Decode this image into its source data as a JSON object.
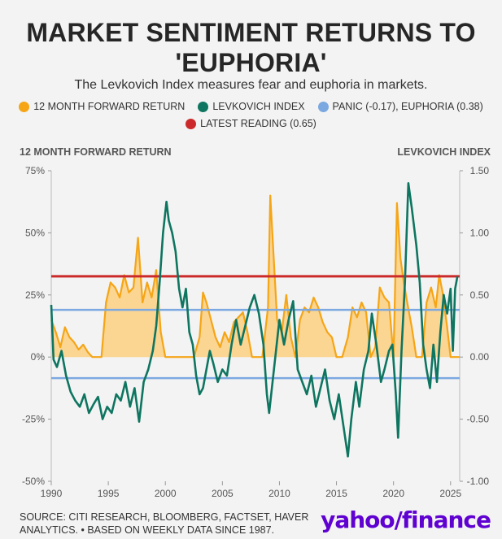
{
  "header": {
    "title_line1": "MARKET SENTIMENT RETURNS TO",
    "title_line2": "'EUPHORIA'",
    "subtitle": "The Levkovich Index measures fear and euphoria in markets."
  },
  "legend": [
    {
      "label": "12 MONTH FORWARD RETURN",
      "color": "#f5a516"
    },
    {
      "label": "LEVKOVICH INDEX",
      "color": "#0e7560"
    },
    {
      "label": "PANIC (-0.17), EUPHORIA (0.38)",
      "color": "#7ba8e0"
    },
    {
      "label": "LATEST READING (0.65)",
      "color": "#cc2a2a"
    }
  ],
  "axes": {
    "left_title": "12 MONTH FORWARD RETURN",
    "right_title": "LEVKOVICH INDEX"
  },
  "footer": {
    "source_line1": "SOURCE: CITI RESEARCH, BLOOMBERG, FACTSET, HAVER",
    "source_line2": "ANALYTICS. • BASED ON WEEKLY DATA SINCE 1987.",
    "logo_text": "yahoo/finance"
  },
  "chart_data": {
    "type": "line",
    "x_axis": {
      "ticks": [
        1990,
        1995,
        2000,
        2005,
        2010,
        2015,
        2020,
        2025
      ],
      "range": [
        1990,
        2025.8
      ]
    },
    "y_left": {
      "label": "12 MONTH FORWARD RETURN",
      "range": [
        -50,
        75
      ],
      "ticks": [
        75,
        50,
        25,
        0,
        -25,
        -50
      ],
      "tick_labels": [
        "75%",
        "50%",
        "25%",
        "0%",
        "-25%",
        "-50%"
      ]
    },
    "y_right": {
      "label": "LEVKOVICH INDEX",
      "range": [
        -1.0,
        1.5
      ],
      "ticks": [
        1.5,
        1.0,
        0.5,
        0.0,
        -0.5,
        -1.0
      ],
      "tick_labels": [
        "1.50",
        "1.00",
        "0.50",
        "0.00",
        "-0.50",
        "-1.00"
      ]
    },
    "reference_lines": [
      {
        "name": "PANIC",
        "axis": "right",
        "value": -0.17,
        "color": "#7ba8e0"
      },
      {
        "name": "EUPHORIA",
        "axis": "right",
        "value": 0.38,
        "color": "#7ba8e0"
      },
      {
        "name": "LATEST READING",
        "axis": "right",
        "value": 0.65,
        "color": "#cc2a2a"
      }
    ],
    "series": [
      {
        "name": "12 MONTH FORWARD RETURN",
        "axis": "left",
        "style": "area",
        "color": "#f5a516",
        "points": [
          [
            1990.0,
            15
          ],
          [
            1990.4,
            10
          ],
          [
            1990.8,
            4
          ],
          [
            1991.2,
            12
          ],
          [
            1991.6,
            8
          ],
          [
            1992.0,
            6
          ],
          [
            1992.4,
            3
          ],
          [
            1992.8,
            5
          ],
          [
            1993.2,
            2
          ],
          [
            1993.6,
            0
          ],
          [
            1994.0,
            0
          ],
          [
            1994.4,
            0
          ],
          [
            1994.8,
            22
          ],
          [
            1995.2,
            30
          ],
          [
            1995.6,
            28
          ],
          [
            1996.0,
            24
          ],
          [
            1996.4,
            33
          ],
          [
            1996.8,
            26
          ],
          [
            1997.2,
            28
          ],
          [
            1997.6,
            48
          ],
          [
            1998.0,
            22
          ],
          [
            1998.4,
            30
          ],
          [
            1998.8,
            24
          ],
          [
            1999.2,
            35
          ],
          [
            1999.6,
            10
          ],
          [
            2000.0,
            0
          ],
          [
            2000.5,
            0
          ],
          [
            2001.0,
            0
          ],
          [
            2001.5,
            0
          ],
          [
            2002.0,
            0
          ],
          [
            2002.5,
            0
          ],
          [
            2003.0,
            8
          ],
          [
            2003.3,
            26
          ],
          [
            2003.6,
            22
          ],
          [
            2004.0,
            15
          ],
          [
            2004.4,
            8
          ],
          [
            2004.8,
            4
          ],
          [
            2005.2,
            10
          ],
          [
            2005.6,
            6
          ],
          [
            2006.0,
            14
          ],
          [
            2006.4,
            16
          ],
          [
            2006.8,
            18
          ],
          [
            2007.2,
            10
          ],
          [
            2007.6,
            0
          ],
          [
            2008.0,
            0
          ],
          [
            2008.5,
            0
          ],
          [
            2009.0,
            20
          ],
          [
            2009.2,
            65
          ],
          [
            2009.5,
            40
          ],
          [
            2009.8,
            15
          ],
          [
            2010.2,
            10
          ],
          [
            2010.6,
            25
          ],
          [
            2011.0,
            8
          ],
          [
            2011.4,
            0
          ],
          [
            2011.8,
            15
          ],
          [
            2012.2,
            20
          ],
          [
            2012.6,
            18
          ],
          [
            2013.0,
            24
          ],
          [
            2013.4,
            20
          ],
          [
            2013.8,
            14
          ],
          [
            2014.2,
            10
          ],
          [
            2014.6,
            8
          ],
          [
            2015.0,
            0
          ],
          [
            2015.5,
            0
          ],
          [
            2016.0,
            8
          ],
          [
            2016.4,
            20
          ],
          [
            2016.8,
            16
          ],
          [
            2017.2,
            22
          ],
          [
            2017.6,
            18
          ],
          [
            2018.0,
            0
          ],
          [
            2018.4,
            4
          ],
          [
            2018.8,
            28
          ],
          [
            2019.2,
            24
          ],
          [
            2019.6,
            22
          ],
          [
            2020.0,
            0
          ],
          [
            2020.3,
            62
          ],
          [
            2020.6,
            40
          ],
          [
            2020.9,
            30
          ],
          [
            2021.2,
            22
          ],
          [
            2021.6,
            12
          ],
          [
            2022.0,
            0
          ],
          [
            2022.5,
            0
          ],
          [
            2022.9,
            22
          ],
          [
            2023.3,
            28
          ],
          [
            2023.7,
            20
          ],
          [
            2024.0,
            33
          ],
          [
            2024.3,
            26
          ],
          [
            2024.7,
            12
          ],
          [
            2025.0,
            0
          ],
          [
            2025.8,
            0
          ]
        ]
      },
      {
        "name": "LEVKOVICH INDEX",
        "axis": "right",
        "style": "line",
        "color": "#0e7560",
        "points": [
          [
            1990.0,
            0.42
          ],
          [
            1990.2,
            -0.02
          ],
          [
            1990.5,
            -0.08
          ],
          [
            1990.9,
            0.05
          ],
          [
            1991.3,
            -0.15
          ],
          [
            1991.7,
            -0.28
          ],
          [
            1992.1,
            -0.35
          ],
          [
            1992.5,
            -0.4
          ],
          [
            1992.9,
            -0.3
          ],
          [
            1993.3,
            -0.45
          ],
          [
            1993.7,
            -0.38
          ],
          [
            1994.1,
            -0.32
          ],
          [
            1994.5,
            -0.5
          ],
          [
            1994.9,
            -0.4
          ],
          [
            1995.3,
            -0.45
          ],
          [
            1995.7,
            -0.3
          ],
          [
            1996.1,
            -0.35
          ],
          [
            1996.5,
            -0.2
          ],
          [
            1996.9,
            -0.4
          ],
          [
            1997.3,
            -0.25
          ],
          [
            1997.7,
            -0.52
          ],
          [
            1998.1,
            -0.2
          ],
          [
            1998.5,
            -0.1
          ],
          [
            1998.9,
            0.05
          ],
          [
            1999.2,
            0.25
          ],
          [
            1999.5,
            0.6
          ],
          [
            1999.8,
            1.0
          ],
          [
            2000.1,
            1.25
          ],
          [
            2000.3,
            1.1
          ],
          [
            2000.6,
            1.0
          ],
          [
            2000.9,
            0.85
          ],
          [
            2001.2,
            0.55
          ],
          [
            2001.5,
            0.4
          ],
          [
            2001.8,
            0.55
          ],
          [
            2002.1,
            0.2
          ],
          [
            2002.4,
            0.1
          ],
          [
            2002.7,
            -0.15
          ],
          [
            2003.0,
            -0.3
          ],
          [
            2003.3,
            -0.25
          ],
          [
            2003.6,
            -0.1
          ],
          [
            2003.9,
            0.05
          ],
          [
            2004.2,
            -0.05
          ],
          [
            2004.6,
            -0.2
          ],
          [
            2005.0,
            -0.1
          ],
          [
            2005.4,
            -0.15
          ],
          [
            2005.8,
            0.1
          ],
          [
            2006.2,
            0.3
          ],
          [
            2006.6,
            0.1
          ],
          [
            2007.0,
            0.25
          ],
          [
            2007.4,
            0.4
          ],
          [
            2007.8,
            0.5
          ],
          [
            2008.2,
            0.35
          ],
          [
            2008.6,
            0.1
          ],
          [
            2008.9,
            -0.3
          ],
          [
            2009.1,
            -0.45
          ],
          [
            2009.4,
            -0.2
          ],
          [
            2009.7,
            0.05
          ],
          [
            2010.0,
            0.3
          ],
          [
            2010.4,
            0.1
          ],
          [
            2010.8,
            0.3
          ],
          [
            2011.2,
            0.45
          ],
          [
            2011.6,
            -0.1
          ],
          [
            2012.0,
            -0.2
          ],
          [
            2012.4,
            -0.3
          ],
          [
            2012.8,
            -0.15
          ],
          [
            2013.2,
            -0.4
          ],
          [
            2013.6,
            -0.25
          ],
          [
            2014.0,
            -0.1
          ],
          [
            2014.4,
            -0.35
          ],
          [
            2014.8,
            -0.5
          ],
          [
            2015.2,
            -0.3
          ],
          [
            2015.6,
            -0.55
          ],
          [
            2016.0,
            -0.8
          ],
          [
            2016.3,
            -0.5
          ],
          [
            2016.7,
            -0.2
          ],
          [
            2017.0,
            -0.4
          ],
          [
            2017.4,
            -0.1
          ],
          [
            2017.8,
            0.05
          ],
          [
            2018.1,
            0.35
          ],
          [
            2018.5,
            0.1
          ],
          [
            2018.9,
            -0.2
          ],
          [
            2019.2,
            -0.1
          ],
          [
            2019.6,
            0.05
          ],
          [
            2019.9,
            0.1
          ],
          [
            2020.2,
            -0.3
          ],
          [
            2020.4,
            -0.65
          ],
          [
            2020.7,
            0.05
          ],
          [
            2021.0,
            0.6
          ],
          [
            2021.3,
            1.4
          ],
          [
            2021.6,
            1.2
          ],
          [
            2022.0,
            0.9
          ],
          [
            2022.3,
            0.6
          ],
          [
            2022.6,
            0.1
          ],
          [
            2022.9,
            -0.1
          ],
          [
            2023.2,
            -0.25
          ],
          [
            2023.5,
            0.1
          ],
          [
            2023.8,
            -0.2
          ],
          [
            2024.1,
            0.2
          ],
          [
            2024.4,
            0.5
          ],
          [
            2024.7,
            0.35
          ],
          [
            2025.0,
            0.55
          ],
          [
            2025.2,
            0.05
          ],
          [
            2025.4,
            0.55
          ],
          [
            2025.6,
            0.65
          ]
        ]
      }
    ]
  }
}
